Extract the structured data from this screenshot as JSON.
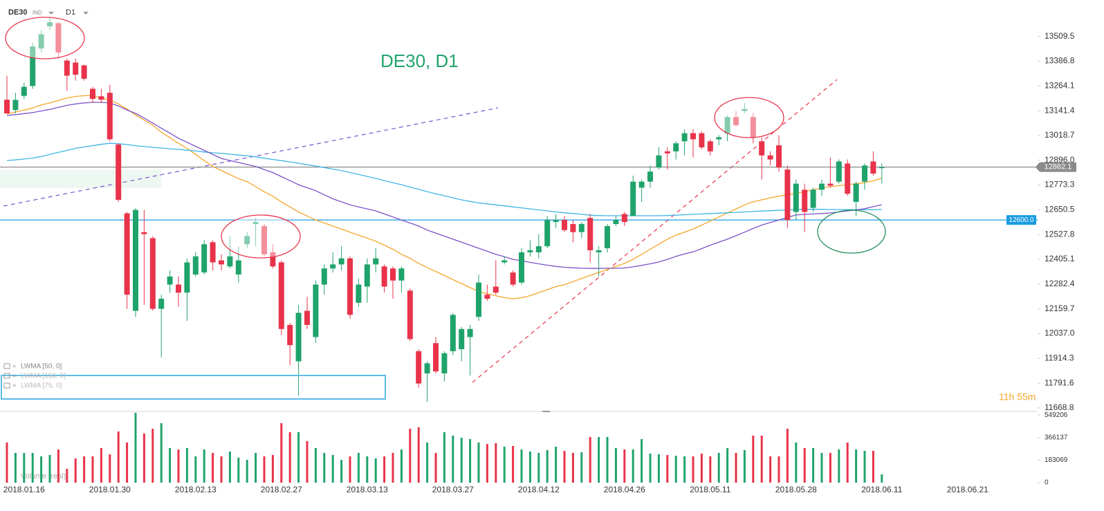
{
  "chart_data": {
    "type": "candlestick",
    "title": "DE30, D1",
    "symbol": "DE30",
    "symbol_tag": "IND",
    "timeframe": "D1",
    "countdown": "11h 55m",
    "up_color": "#1fa36b",
    "down_color": "#e8334a",
    "categories": [
      null,
      null,
      "2018.01.16",
      null,
      null,
      null,
      null,
      null,
      null,
      null,
      null,
      null,
      "2018.01.30",
      null,
      null,
      null,
      null,
      null,
      null,
      null,
      null,
      null,
      "2018.02.13",
      null,
      null,
      null,
      null,
      null,
      null,
      null,
      null,
      null,
      "2018.02.27",
      null,
      null,
      null,
      null,
      null,
      null,
      null,
      null,
      null,
      "2018.03.13",
      null,
      null,
      null,
      null,
      null,
      null,
      null,
      null,
      null,
      "2018.03.27",
      null,
      null,
      null,
      null,
      null,
      null,
      null,
      null,
      null,
      "2018.04.12",
      null,
      null,
      null,
      null,
      null,
      null,
      null,
      null,
      null,
      "2018.04.26",
      null,
      null,
      null,
      null,
      null,
      null,
      null,
      null,
      null,
      "2018.05.11",
      null,
      null,
      null,
      null,
      null,
      null,
      null,
      null,
      null,
      "2018.05.28",
      null,
      null,
      null,
      null,
      null,
      null,
      null,
      null,
      null,
      "2018.06.11",
      null,
      null,
      null,
      null,
      null,
      null,
      null,
      null,
      null,
      "2018.06.21"
    ],
    "open": [
      13196,
      13145,
      13215,
      13264,
      13450,
      13560,
      13575,
      13390,
      13380,
      13366,
      13250,
      13213,
      13230,
      12974,
      12633,
      12150,
      12540,
      12510,
      12160,
      12280,
      12280,
      12240,
      12330,
      12340,
      12490,
      12400,
      12370,
      12330,
      12480,
      12580,
      12570,
      12440,
      12390,
      12080,
      11900,
      12150,
      12020,
      12280,
      12360,
      12380,
      12410,
      12190,
      12270,
      12380,
      12370,
      12360,
      12300,
      12250,
      11950,
      11840,
      11990,
      11840,
      11950,
      11960,
      12020,
      12120,
      12230,
      12270,
      12390,
      12340,
      12290,
      12440,
      12440,
      12470,
      12590,
      12600,
      12580,
      12540,
      12610,
      12440,
      12460,
      12580,
      12630,
      12620,
      12760,
      12790,
      12860,
      12940,
      12940,
      12990,
      13030,
      13030,
      12990,
      13000,
      13030,
      13110,
      13140,
      13110,
      12990,
      12920,
      12970,
      12850,
      12640,
      12750,
      12660,
      12750,
      12780,
      12790,
      12880,
      12690,
      12790,
      12890,
      12860,
      null,
      null,
      null,
      null,
      null,
      null,
      null,
      null,
      null,
      null
    ],
    "high": [
      13315,
      13230,
      13281,
      13480,
      13540,
      13600,
      13580,
      13400,
      13400,
      13370,
      13260,
      13250,
      13270,
      12980,
      12640,
      12660,
      12650,
      12520,
      12230,
      12350,
      12320,
      12410,
      12440,
      12500,
      12500,
      12430,
      12520,
      12470,
      12540,
      12610,
      12580,
      12480,
      12400,
      12090,
      12180,
      12220,
      12300,
      12380,
      12440,
      12470,
      12420,
      12310,
      12410,
      12460,
      12380,
      12370,
      12370,
      12260,
      11960,
      11900,
      12020,
      11950,
      12140,
      12070,
      12080,
      12330,
      12280,
      12400,
      12420,
      12350,
      12460,
      12500,
      12530,
      12620,
      12630,
      12620,
      12600,
      12590,
      12630,
      12470,
      12580,
      12620,
      12640,
      12820,
      12800,
      12870,
      12960,
      12960,
      12990,
      13050,
      13050,
      13040,
      13000,
      13020,
      13120,
      13140,
      13180,
      13130,
      13010,
      12940,
      13020,
      12870,
      12800,
      12780,
      12760,
      12800,
      12910,
      12900,
      12900,
      12790,
      12880,
      12940,
      12880,
      null,
      null,
      null,
      null,
      null,
      null,
      null,
      null,
      null,
      null
    ],
    "low": [
      13128,
      13128,
      13200,
      13250,
      13430,
      13540,
      13400,
      13240,
      13290,
      13290,
      13180,
      13180,
      12990,
      12690,
      12160,
      12120,
      12180,
      12150,
      11920,
      12240,
      12170,
      12100,
      12320,
      12330,
      12350,
      12350,
      12360,
      12290,
      12460,
      12470,
      12420,
      12360,
      12030,
      11880,
      11730,
      12060,
      11990,
      12230,
      12340,
      12350,
      12110,
      12170,
      12190,
      12340,
      12240,
      12210,
      12240,
      12000,
      11770,
      11700,
      11840,
      11800,
      11930,
      11900,
      11830,
      12100,
      12200,
      12230,
      12380,
      12270,
      12280,
      12420,
      12410,
      12460,
      12560,
      12540,
      12490,
      12510,
      12390,
      12320,
      12440,
      12570,
      12570,
      12620,
      12690,
      12760,
      12850,
      12850,
      12900,
      12920,
      12910,
      12950,
      12920,
      12970,
      12990,
      13060,
      13130,
      12980,
      12800,
      12870,
      12840,
      12560,
      12600,
      12540,
      12640,
      12720,
      12760,
      12780,
      12720,
      12620,
      12750,
      12820,
      12780,
      null,
      null,
      null,
      null,
      null,
      null,
      null,
      null,
      null,
      null
    ],
    "close": [
      13128,
      13195,
      13260,
      13460,
      13520,
      13580,
      13430,
      13315,
      13320,
      13300,
      13200,
      13196,
      13000,
      12700,
      12230,
      12650,
      12530,
      12160,
      12210,
      12320,
      12240,
      12390,
      12420,
      12480,
      12390,
      12380,
      12420,
      12400,
      12520,
      12590,
      12430,
      12370,
      12060,
      11980,
      12140,
      12080,
      12280,
      12360,
      12380,
      12410,
      12130,
      12280,
      12380,
      12410,
      12270,
      12300,
      12360,
      12010,
      11790,
      11890,
      11850,
      11940,
      12130,
      12060,
      12060,
      12290,
      12210,
      12240,
      12400,
      12280,
      12440,
      12450,
      12470,
      12600,
      12600,
      12550,
      12540,
      12580,
      12450,
      12450,
      12570,
      12600,
      12590,
      12790,
      12790,
      12840,
      12920,
      12930,
      12980,
      13030,
      13000,
      12960,
      12940,
      13010,
      13110,
      13070,
      13150,
      13010,
      12920,
      12900,
      12860,
      12600,
      12780,
      12640,
      12750,
      12780,
      12770,
      12890,
      12730,
      12780,
      12870,
      12830,
      12862,
      null,
      null,
      null,
      null,
      null,
      null,
      null,
      null,
      null,
      null
    ],
    "series": [
      {
        "name": "LWMA [50, 0]",
        "color": "#f5a52a",
        "values": [
          13125,
          13135,
          13145,
          13155,
          13170,
          13180,
          13192,
          13205,
          13212,
          13216,
          13217,
          13205,
          13195,
          13175,
          13150,
          13120,
          13095,
          13070,
          13035,
          13008,
          12980,
          12955,
          12925,
          12895,
          12865,
          12845,
          12825,
          12805,
          12790,
          12765,
          12740,
          12718,
          12690,
          12665,
          12640,
          12620,
          12600,
          12585,
          12570,
          12555,
          12540,
          12525,
          12510,
          12495,
          12475,
          12455,
          12430,
          12410,
          12385,
          12365,
          12345,
          12325,
          12305,
          12285,
          12265,
          12245,
          12235,
          12225,
          12215,
          12210,
          12215,
          12225,
          12240,
          12255,
          12270,
          12280,
          12295,
          12310,
          12325,
          12340,
          12355,
          12370,
          12385,
          12405,
          12430,
          12455,
          12480,
          12505,
          12525,
          12540,
          12555,
          12575,
          12595,
          12615,
          12635,
          12655,
          12675,
          12690,
          12700,
          12710,
          12718,
          12725,
          12732,
          12740,
          12750,
          12758,
          12765,
          12770,
          12775,
          12780,
          12785,
          12795,
          12806,
          null,
          null,
          null,
          null,
          null,
          null,
          null,
          null,
          null,
          null
        ]
      },
      {
        "name": "LWMA [150, 0]",
        "color": "#3fb5e6",
        "values": [
          12895,
          12898,
          12902,
          12907,
          12915,
          12925,
          12935,
          12945,
          12955,
          12962,
          12968,
          12975,
          12980,
          12978,
          12974,
          12968,
          12964,
          12960,
          12957,
          12953,
          12950,
          12946,
          12942,
          12937,
          12933,
          12930,
          12926,
          12922,
          12918,
          12913,
          12906,
          12900,
          12894,
          12888,
          12881,
          12874,
          12867,
          12860,
          12852,
          12845,
          12835,
          12826,
          12816,
          12806,
          12795,
          12785,
          12775,
          12763,
          12752,
          12740,
          12730,
          12720,
          12710,
          12700,
          12692,
          12685,
          12680,
          12675,
          12670,
          12665,
          12660,
          12655,
          12650,
          12645,
          12640,
          12636,
          12632,
          12628,
          12624,
          12622,
          12621,
          12621,
          12621,
          12621,
          12621,
          12621,
          12621,
          12622,
          12624,
          12626,
          12628,
          12630,
          12632,
          12634,
          12636,
          12638,
          12640,
          12642,
          12644,
          12646,
          12648,
          12650,
          12652,
          12653,
          12653,
          12653,
          12652,
          12652,
          12652,
          12651,
          12651,
          12651,
          12652,
          null,
          null,
          null,
          null,
          null,
          null,
          null,
          null,
          null,
          null
        ]
      },
      {
        "name": "LWMA [75, 0]",
        "color": "#7b52c8",
        "values": [
          13118,
          13122,
          13127,
          13132,
          13140,
          13148,
          13158,
          13168,
          13175,
          13180,
          13183,
          13183,
          13180,
          13165,
          13145,
          13128,
          13105,
          13080,
          13055,
          13030,
          13005,
          12985,
          12965,
          12945,
          12925,
          12905,
          12895,
          12885,
          12875,
          12865,
          12850,
          12835,
          12815,
          12795,
          12775,
          12760,
          12745,
          12725,
          12705,
          12690,
          12675,
          12665,
          12655,
          12645,
          12630,
          12615,
          12600,
          12585,
          12570,
          12550,
          12535,
          12520,
          12505,
          12490,
          12475,
          12460,
          12445,
          12430,
          12418,
          12405,
          12398,
          12390,
          12383,
          12376,
          12370,
          12366,
          12363,
          12361,
          12360,
          12360,
          12361,
          12361,
          12362,
          12368,
          12375,
          12383,
          12392,
          12405,
          12420,
          12432,
          12442,
          12458,
          12475,
          12490,
          12505,
          12522,
          12540,
          12558,
          12575,
          12588,
          12600,
          12613,
          12625,
          12628,
          12630,
          12632,
          12635,
          12640,
          12645,
          12650,
          12656,
          12666,
          12676,
          null,
          null,
          null,
          null,
          null,
          null,
          null,
          null,
          null,
          null
        ]
      }
    ],
    "ylim": [
      11655,
      13690
    ],
    "yticks": [
      13509.5,
      13386.8,
      13264.1,
      13141.4,
      13018.7,
      {
        "value": 12896,
        "label": "12896.0"
      },
      12773.3,
      12650.5,
      12527.8,
      12405.1,
      12282.4,
      12159.7,
      {
        "value": 12037,
        "label": "12037.0"
      },
      11914.3,
      11791.6,
      11668.8
    ],
    "price_lines": [
      {
        "value": 12862.1,
        "label": "12862.1",
        "color": "#8a8a8a"
      },
      {
        "value": 12600,
        "label": "12600.0",
        "color": "#1a9be0"
      }
    ],
    "volume": {
      "name": "Volume (real)",
      "values": [
        325728,
        241488,
        241488,
        241488,
        213408,
        224640,
        269568,
        112320,
        196560,
        213408,
        213408,
        280800,
        230256,
        415584,
        325728,
        567216,
        398736,
        438048,
        482976,
        280800,
        269568,
        280800,
        213408,
        269568,
        241488,
        213408,
        252720,
        202176,
        185328,
        241488,
        213408,
        224640,
        482976,
        409968,
        409968,
        336960,
        280800,
        241488,
        224640,
        185328,
        213408,
        241488,
        213408,
        196560,
        213408,
        241488,
        269568,
        438048,
        449280,
        325728,
        241488,
        409968,
        381888,
        365040,
        353808,
        325728,
        314496,
        320112,
        292032,
        297648,
        269568,
        252720,
        241488,
        263952,
        292032,
        258336,
        241488,
        247104,
        370656,
        370656,
        370656,
        280800,
        269568,
        269568,
        353808,
        235872,
        230256,
        224640,
        219024,
        213408,
        213408,
        235872,
        213408,
        241488,
        280800,
        241488,
        263952,
        381888,
        381888,
        213408,
        213408,
        438048,
        325728,
        280800,
        280800,
        241488,
        241488,
        269568,
        325728,
        269568,
        258336,
        258336,
        67392,
        null,
        null,
        null,
        null,
        null,
        null,
        null,
        null,
        null,
        null
      ],
      "ylim": [
        0,
        572800
      ],
      "yticks": [
        549206,
        366137,
        183069,
        0
      ]
    }
  }
}
